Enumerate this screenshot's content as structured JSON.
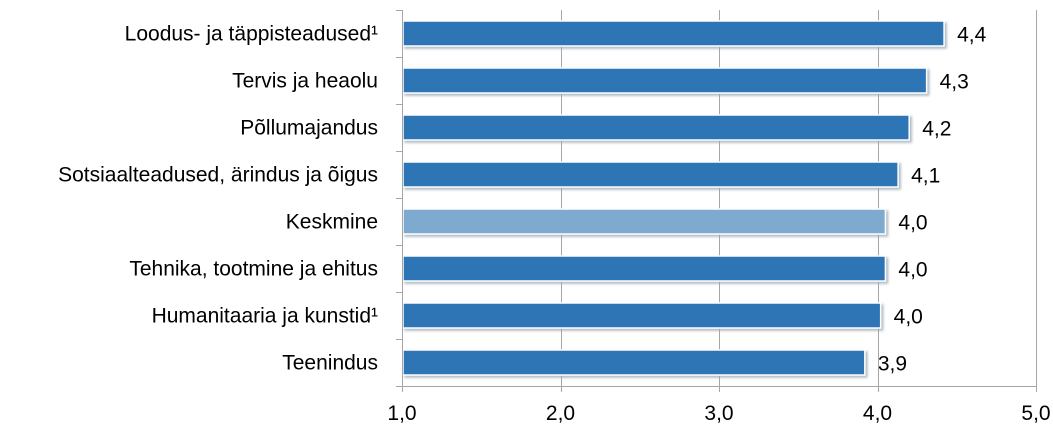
{
  "chart_data": {
    "type": "bar",
    "orientation": "horizontal",
    "categories": [
      "Loodus- ja täppisteadused¹",
      "Tervis ja heaolu",
      "Põllumajandus",
      "Sotsiaalteadused, ärindus ja õigus",
      "Keskmine",
      "Tehnika, tootmine ja ehitus",
      "Humanitaaria ja kunstid¹",
      "Teenindus"
    ],
    "values": [
      4.42,
      4.31,
      4.2,
      4.13,
      4.05,
      4.05,
      4.02,
      3.92
    ],
    "value_labels": [
      "4,4",
      "4,3",
      "4,2",
      "4,1",
      "4,0",
      "4,0",
      "4,0",
      "3,9"
    ],
    "highlight_index": 4,
    "xlim": [
      1.0,
      5.0
    ],
    "xticks": [
      1.0,
      2.0,
      3.0,
      4.0,
      5.0
    ],
    "xtick_labels": [
      "1,0",
      "2,0",
      "3,0",
      "4,0",
      "5,0"
    ],
    "grid": true,
    "legend": "none",
    "title": "",
    "xlabel": "",
    "ylabel": "",
    "colors": {
      "bar": "#2e75b6",
      "bar_highlight": "#7eaacf",
      "bar_shadow": "#9aa8b6",
      "grid": "#a6a6a6"
    }
  }
}
